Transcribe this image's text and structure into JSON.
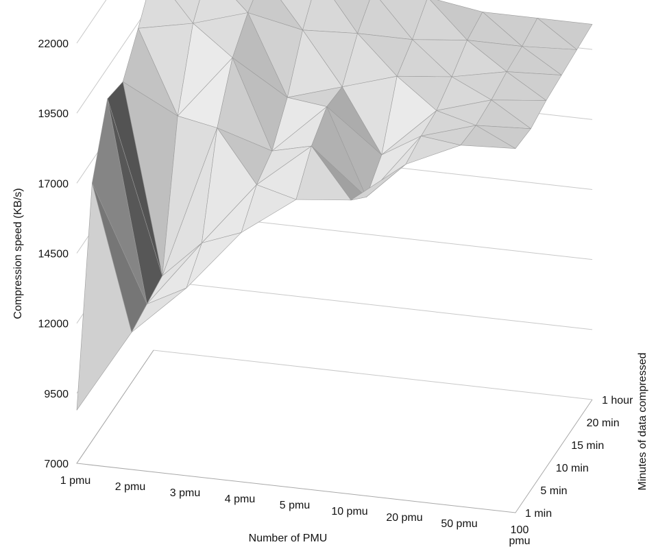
{
  "chart_data": {
    "type": "surface3d",
    "xlabel": "Number of PMU",
    "ylabel": "Minutes of data compressed",
    "zlabel": "Compression speed (KB/s)",
    "x_ticks": [
      "1 pmu",
      "2 pmu",
      "3 pmu",
      "4 pmu",
      "5 pmu",
      "10 pmu",
      "20 pmu",
      "50 pmu",
      "100 pmu"
    ],
    "y_ticks": [
      "1 min",
      "5 min",
      "10 min",
      "15 min",
      "20 min",
      "1 hour"
    ],
    "z_ticks": [
      "7000",
      "9500",
      "12000",
      "14500",
      "17000",
      "19500",
      "22000"
    ],
    "zlim": [
      7000,
      22000
    ],
    "z_values": [
      [
        8900,
        11900,
        13700,
        15900,
        17300,
        17500,
        19000,
        19900,
        20000
      ],
      [
        16200,
        12100,
        14500,
        16800,
        18400,
        16800,
        19200,
        19800,
        19900
      ],
      [
        18400,
        12300,
        17800,
        17200,
        19000,
        17500,
        19300,
        19900,
        20100
      ],
      [
        18200,
        17200,
        19500,
        18300,
        18900,
        19500,
        19700,
        20100,
        20200
      ],
      [
        19300,
        19700,
        20300,
        19900,
        20000,
        20000,
        20200,
        20200,
        20300
      ],
      [
        20500,
        20800,
        20800,
        21000,
        20700,
        20700,
        20400,
        20400,
        20400
      ]
    ],
    "grid": true
  }
}
